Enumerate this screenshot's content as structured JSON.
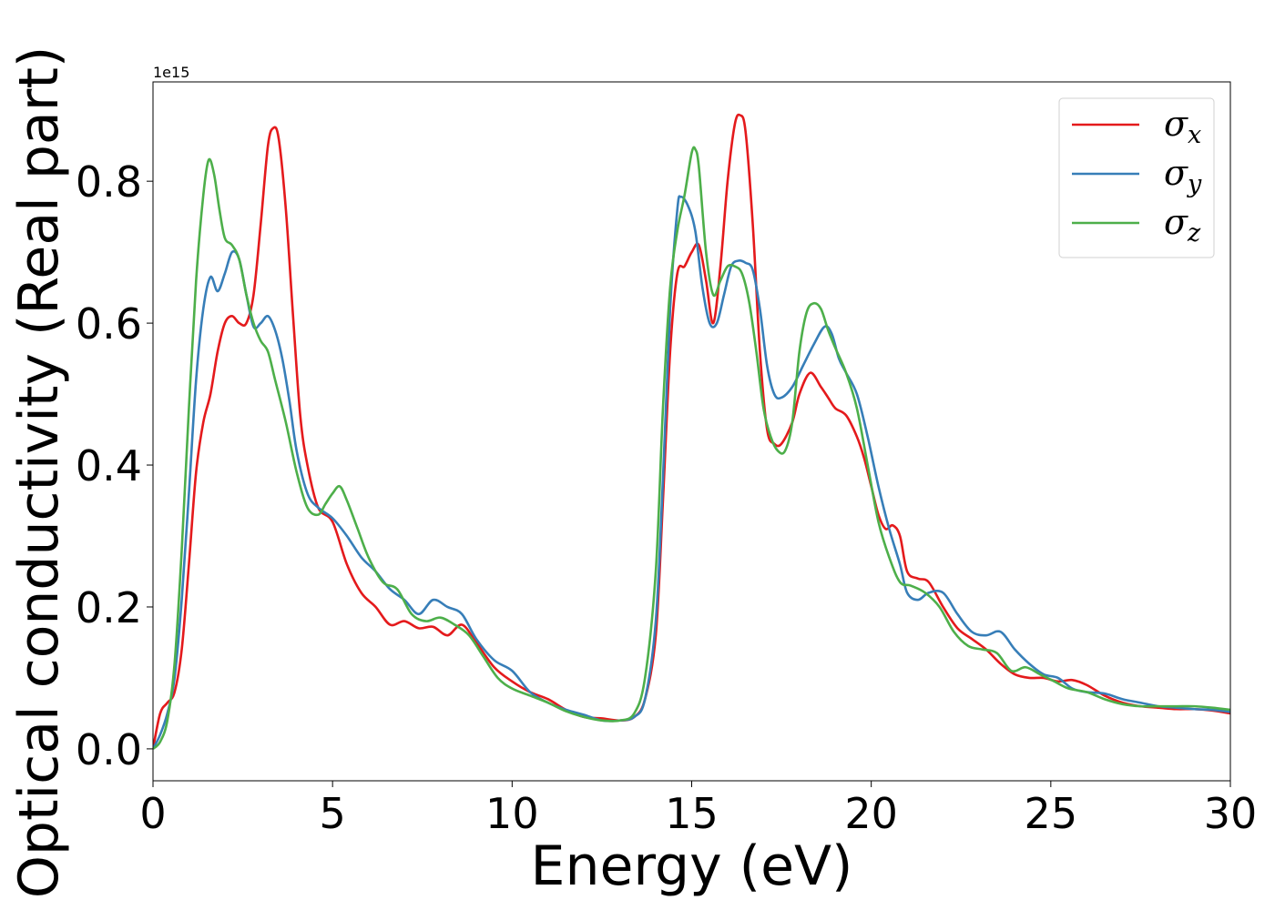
{
  "chart_data": {
    "type": "line",
    "xlabel": "Energy (eV)",
    "ylabel": "Optical conductivity (Real part)",
    "y_offset_label": "1e15",
    "xlim": [
      0,
      30
    ],
    "ylim": [
      -0.045,
      0.94
    ],
    "x_ticks": [
      0,
      5,
      10,
      15,
      20,
      25,
      30
    ],
    "y_ticks": [
      0.0,
      0.2,
      0.4,
      0.6,
      0.8
    ],
    "x_tick_labels": [
      "0",
      "5",
      "10",
      "15",
      "20",
      "25",
      "30"
    ],
    "y_tick_labels": [
      "0.0",
      "0.2",
      "0.4",
      "0.6",
      "0.8"
    ],
    "grid": false,
    "legend": "top-right",
    "series": [
      {
        "name": "σ",
        "sub": "x",
        "color": "#e41a1c",
        "x": [
          0,
          0.2,
          0.4,
          0.6,
          0.8,
          1.0,
          1.2,
          1.4,
          1.6,
          1.8,
          2.0,
          2.2,
          2.4,
          2.6,
          2.8,
          3.0,
          3.2,
          3.35,
          3.5,
          3.7,
          3.9,
          4.1,
          4.3,
          4.6,
          5.0,
          5.4,
          5.8,
          6.2,
          6.6,
          7.0,
          7.4,
          7.8,
          8.2,
          8.6,
          9.0,
          9.5,
          10.0,
          10.5,
          11.0,
          11.5,
          12.0,
          12.5,
          13.0,
          13.4,
          13.7,
          14.0,
          14.2,
          14.4,
          14.6,
          14.8,
          15.0,
          15.2,
          15.4,
          15.6,
          15.8,
          16.0,
          16.2,
          16.35,
          16.5,
          16.7,
          16.9,
          17.1,
          17.3,
          17.5,
          17.8,
          18.0,
          18.3,
          18.6,
          18.8,
          19.0,
          19.3,
          19.6,
          19.8,
          20.0,
          20.2,
          20.4,
          20.6,
          20.8,
          21.0,
          21.3,
          21.6,
          22.0,
          22.4,
          22.8,
          23.2,
          23.6,
          24.0,
          24.4,
          24.8,
          25.2,
          25.6,
          26.0,
          26.5,
          27.0,
          27.5,
          28.0,
          28.5,
          29.0,
          29.5,
          30.0
        ],
        "values": [
          0.0,
          0.05,
          0.065,
          0.08,
          0.14,
          0.26,
          0.39,
          0.46,
          0.5,
          0.56,
          0.6,
          0.61,
          0.6,
          0.6,
          0.64,
          0.74,
          0.85,
          0.875,
          0.86,
          0.76,
          0.61,
          0.47,
          0.4,
          0.34,
          0.32,
          0.26,
          0.22,
          0.2,
          0.175,
          0.18,
          0.17,
          0.172,
          0.16,
          0.175,
          0.15,
          0.115,
          0.095,
          0.08,
          0.07,
          0.055,
          0.045,
          0.043,
          0.04,
          0.045,
          0.07,
          0.16,
          0.35,
          0.56,
          0.67,
          0.68,
          0.7,
          0.71,
          0.66,
          0.6,
          0.68,
          0.8,
          0.88,
          0.893,
          0.87,
          0.74,
          0.56,
          0.45,
          0.43,
          0.43,
          0.46,
          0.5,
          0.53,
          0.51,
          0.495,
          0.48,
          0.47,
          0.44,
          0.41,
          0.37,
          0.33,
          0.31,
          0.315,
          0.3,
          0.25,
          0.24,
          0.235,
          0.2,
          0.17,
          0.155,
          0.14,
          0.12,
          0.105,
          0.1,
          0.1,
          0.095,
          0.097,
          0.09,
          0.075,
          0.065,
          0.06,
          0.058,
          0.056,
          0.056,
          0.054,
          0.05
        ]
      },
      {
        "name": "σ",
        "sub": "y",
        "color": "#377eb8",
        "x": [
          0,
          0.2,
          0.4,
          0.6,
          0.8,
          1.0,
          1.2,
          1.4,
          1.6,
          1.8,
          2.0,
          2.2,
          2.4,
          2.6,
          2.8,
          3.0,
          3.2,
          3.4,
          3.6,
          3.8,
          4.0,
          4.3,
          4.6,
          5.0,
          5.4,
          5.8,
          6.2,
          6.6,
          7.0,
          7.4,
          7.8,
          8.2,
          8.6,
          9.0,
          9.5,
          10.0,
          10.5,
          11.0,
          11.5,
          12.0,
          12.5,
          13.0,
          13.4,
          13.7,
          14.0,
          14.2,
          14.4,
          14.6,
          14.7,
          14.9,
          15.1,
          15.3,
          15.5,
          15.7,
          15.9,
          16.1,
          16.3,
          16.5,
          16.7,
          16.9,
          17.1,
          17.3,
          17.5,
          17.8,
          18.1,
          18.4,
          18.7,
          18.9,
          19.1,
          19.3,
          19.6,
          19.9,
          20.2,
          20.5,
          20.8,
          21.0,
          21.3,
          21.6,
          22.0,
          22.4,
          22.8,
          23.2,
          23.6,
          24.0,
          24.4,
          24.8,
          25.2,
          25.6,
          26.0,
          26.5,
          27.0,
          27.5,
          28.0,
          28.5,
          29.0,
          29.5,
          30.0
        ],
        "values": [
          0.0,
          0.02,
          0.05,
          0.1,
          0.21,
          0.36,
          0.52,
          0.62,
          0.665,
          0.645,
          0.67,
          0.7,
          0.69,
          0.64,
          0.595,
          0.6,
          0.61,
          0.59,
          0.55,
          0.49,
          0.42,
          0.36,
          0.34,
          0.325,
          0.3,
          0.27,
          0.25,
          0.225,
          0.21,
          0.19,
          0.21,
          0.2,
          0.19,
          0.155,
          0.125,
          0.11,
          0.08,
          0.065,
          0.055,
          0.048,
          0.04,
          0.04,
          0.045,
          0.07,
          0.18,
          0.38,
          0.62,
          0.76,
          0.778,
          0.765,
          0.73,
          0.65,
          0.6,
          0.6,
          0.64,
          0.68,
          0.688,
          0.685,
          0.675,
          0.62,
          0.54,
          0.5,
          0.495,
          0.51,
          0.54,
          0.57,
          0.595,
          0.585,
          0.55,
          0.53,
          0.5,
          0.44,
          0.37,
          0.31,
          0.26,
          0.22,
          0.21,
          0.22,
          0.22,
          0.19,
          0.165,
          0.16,
          0.165,
          0.14,
          0.12,
          0.105,
          0.1,
          0.085,
          0.08,
          0.078,
          0.07,
          0.065,
          0.06,
          0.058,
          0.056,
          0.055,
          0.052
        ]
      },
      {
        "name": "σ",
        "sub": "z",
        "color": "#4daf4a",
        "x": [
          0,
          0.2,
          0.4,
          0.6,
          0.8,
          1.0,
          1.2,
          1.4,
          1.55,
          1.7,
          1.85,
          2.0,
          2.2,
          2.4,
          2.6,
          2.8,
          3.0,
          3.2,
          3.4,
          3.7,
          4.0,
          4.3,
          4.6,
          4.8,
          5.0,
          5.2,
          5.4,
          5.7,
          6.0,
          6.4,
          6.8,
          7.2,
          7.6,
          8.0,
          8.4,
          8.8,
          9.2,
          9.6,
          10.0,
          10.5,
          11.0,
          11.5,
          12.0,
          12.5,
          13.0,
          13.4,
          13.7,
          14.0,
          14.2,
          14.4,
          14.6,
          14.8,
          15.0,
          15.1,
          15.2,
          15.4,
          15.6,
          15.8,
          16.0,
          16.2,
          16.4,
          16.6,
          16.8,
          17.0,
          17.2,
          17.4,
          17.6,
          17.8,
          18.0,
          18.2,
          18.4,
          18.6,
          18.8,
          19.0,
          19.3,
          19.6,
          19.9,
          20.2,
          20.5,
          20.8,
          21.1,
          21.5,
          21.9,
          22.3,
          22.7,
          23.1,
          23.5,
          23.9,
          24.3,
          24.7,
          25.1,
          25.5,
          26.0,
          26.5,
          27.0,
          27.5,
          28.0,
          28.5,
          29.0,
          29.5,
          30.0
        ],
        "values": [
          0.0,
          0.01,
          0.04,
          0.12,
          0.28,
          0.48,
          0.66,
          0.78,
          0.83,
          0.81,
          0.76,
          0.72,
          0.71,
          0.69,
          0.64,
          0.6,
          0.575,
          0.56,
          0.52,
          0.46,
          0.39,
          0.34,
          0.33,
          0.345,
          0.36,
          0.37,
          0.35,
          0.31,
          0.27,
          0.235,
          0.225,
          0.19,
          0.18,
          0.185,
          0.175,
          0.16,
          0.13,
          0.1,
          0.085,
          0.075,
          0.065,
          0.053,
          0.045,
          0.04,
          0.04,
          0.05,
          0.1,
          0.25,
          0.48,
          0.65,
          0.73,
          0.78,
          0.84,
          0.845,
          0.82,
          0.7,
          0.64,
          0.66,
          0.68,
          0.68,
          0.67,
          0.63,
          0.56,
          0.48,
          0.44,
          0.42,
          0.42,
          0.46,
          0.56,
          0.615,
          0.628,
          0.62,
          0.59,
          0.565,
          0.53,
          0.48,
          0.4,
          0.32,
          0.27,
          0.235,
          0.23,
          0.22,
          0.2,
          0.165,
          0.145,
          0.14,
          0.135,
          0.11,
          0.115,
          0.105,
          0.095,
          0.085,
          0.08,
          0.07,
          0.063,
          0.06,
          0.06,
          0.06,
          0.06,
          0.058,
          0.055
        ]
      }
    ]
  }
}
